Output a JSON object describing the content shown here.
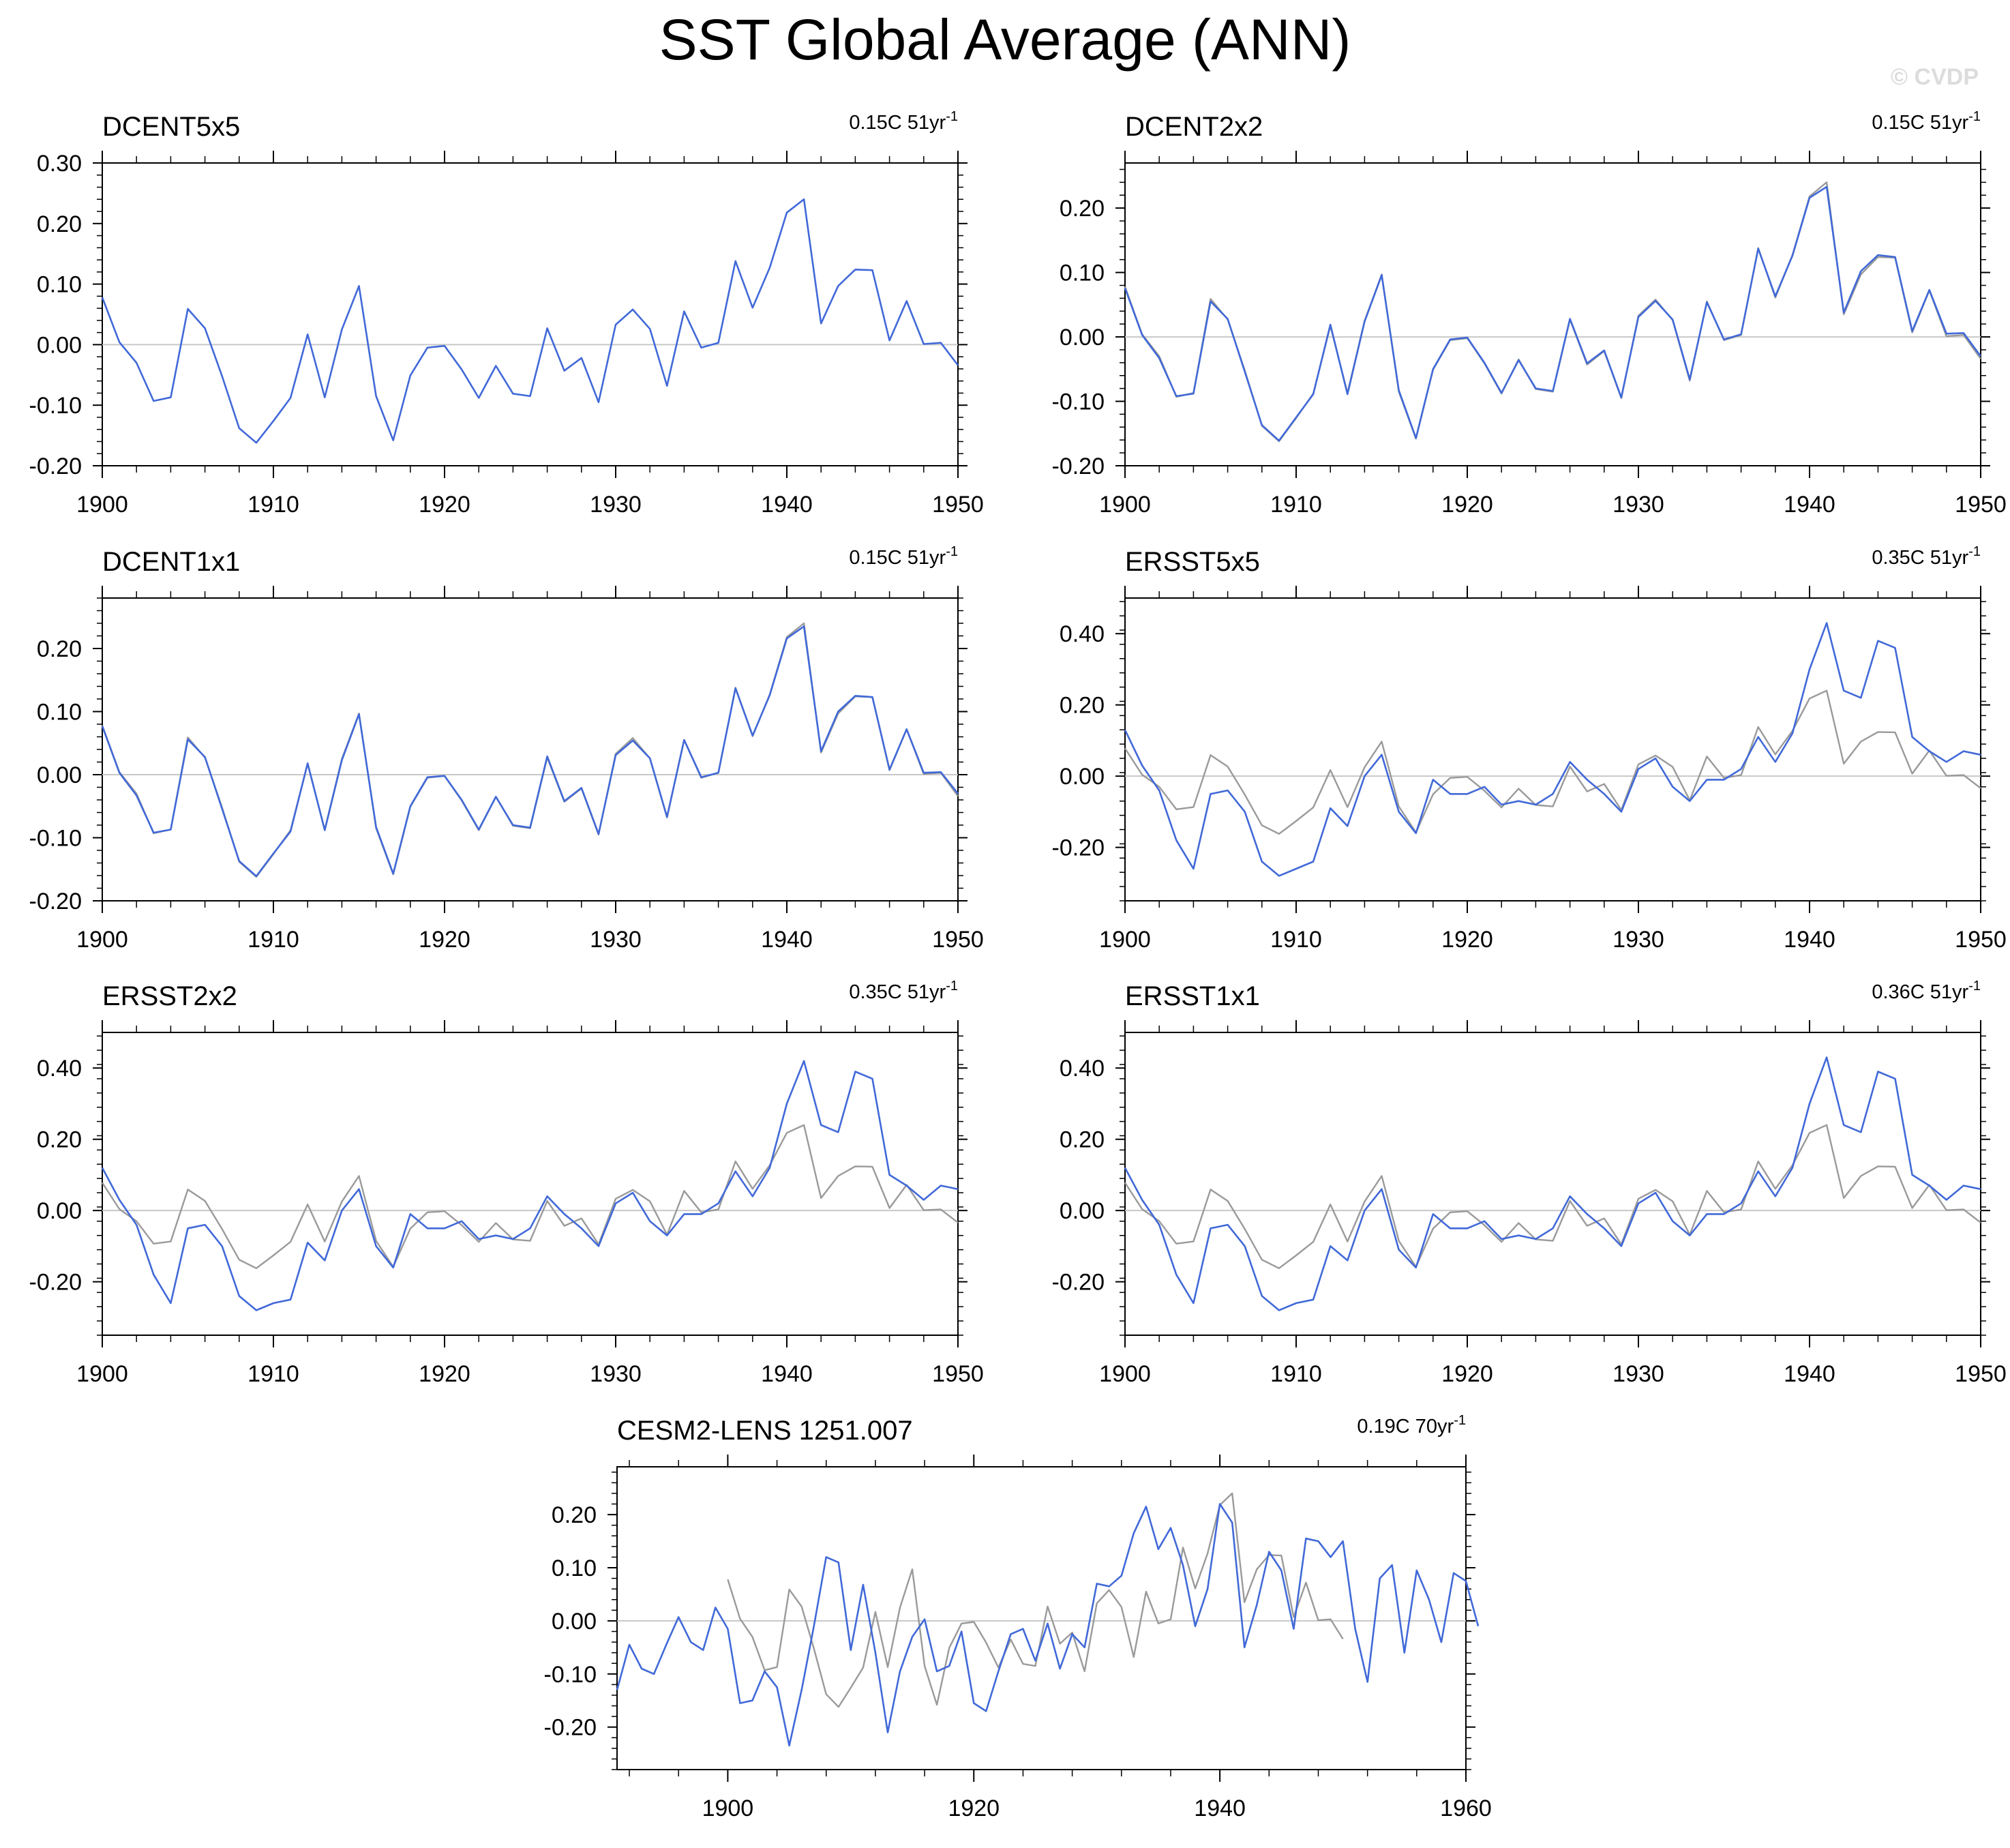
{
  "title": "SST Global Average (ANN)",
  "watermark": "© CVDP",
  "colors": {
    "series": "#4169d8",
    "reference": "#9a9a9a",
    "zero_line": "#c8c8c8",
    "axis": "#000000"
  },
  "chart_data": [
    {
      "type": "line",
      "title": "DCENT5x5",
      "trend": "0.15C 51yr",
      "trend_sup": "-1",
      "xlim": [
        1900,
        1950
      ],
      "ylim": [
        -0.2,
        0.3
      ],
      "xticks": [
        1900,
        1910,
        1920,
        1930,
        1940,
        1950
      ],
      "yticks": [
        "-0.20",
        "-0.10",
        "0.00",
        "0.10",
        "0.20",
        "0.30"
      ],
      "x_start": 1900,
      "series": [
        {
          "values": [
            0.078,
            0.004,
            -0.03,
            -0.093,
            -0.087,
            0.059,
            0.027,
            -0.052,
            -0.138,
            -0.162,
            -0.126,
            -0.088,
            0.017,
            -0.087,
            0.025,
            0.097,
            -0.085,
            -0.158,
            -0.051,
            -0.005,
            -0.002,
            -0.041,
            -0.088,
            -0.035,
            -0.081,
            -0.085,
            0.027,
            -0.043,
            -0.022,
            -0.095,
            0.033,
            0.058,
            0.026,
            -0.068,
            0.055,
            -0.005,
            0.003,
            0.138,
            0.061,
            0.127,
            0.218,
            0.24,
            0.035,
            0.097,
            0.124,
            0.123,
            0.007,
            0.072,
            0.001,
            0.003,
            -0.034
          ]
        }
      ]
    },
    {
      "type": "line",
      "title": "DCENT2x2",
      "trend": "0.15C 51yr",
      "trend_sup": "-1",
      "xlim": [
        1900,
        1950
      ],
      "ylim": [
        -0.2,
        0.27
      ],
      "xticks": [
        1900,
        1910,
        1920,
        1930,
        1940,
        1950
      ],
      "yticks": [
        "-0.20",
        "-0.10",
        "0.00",
        "0.10",
        "0.20"
      ],
      "x_start": 1900,
      "series": [
        {
          "name": "",
          "values": [
            0.078,
            0.004,
            -0.03,
            -0.093,
            -0.087,
            0.059,
            0.027,
            -0.052,
            -0.138,
            -0.162,
            -0.126,
            -0.088,
            0.017,
            -0.087,
            0.025,
            0.097,
            -0.085,
            -0.158,
            -0.051,
            -0.005,
            -0.002,
            -0.041,
            -0.088,
            -0.035,
            -0.081,
            -0.085,
            0.027,
            -0.043,
            -0.022,
            -0.095,
            0.033,
            0.058,
            0.026,
            -0.068,
            0.055,
            -0.005,
            0.003,
            0.138,
            0.061,
            0.127,
            0.218,
            0.24,
            0.035,
            0.097,
            0.124,
            0.123,
            0.007,
            0.072,
            0.001,
            0.003,
            -0.034
          ],
          "reference": true
        },
        {
          "values": [
            0.076,
            0.003,
            -0.033,
            -0.092,
            -0.088,
            0.055,
            0.028,
            -0.054,
            -0.137,
            -0.161,
            -0.125,
            -0.089,
            0.019,
            -0.089,
            0.024,
            0.096,
            -0.083,
            -0.157,
            -0.05,
            -0.004,
            -0.001,
            -0.04,
            -0.087,
            -0.036,
            -0.08,
            -0.084,
            0.028,
            -0.041,
            -0.021,
            -0.094,
            0.031,
            0.056,
            0.027,
            -0.066,
            0.054,
            -0.004,
            0.004,
            0.137,
            0.063,
            0.126,
            0.216,
            0.233,
            0.038,
            0.102,
            0.127,
            0.124,
            0.009,
            0.073,
            0.005,
            0.006,
            -0.03
          ]
        }
      ]
    },
    {
      "type": "line",
      "title": "DCENT1x1",
      "trend": "0.15C 51yr",
      "trend_sup": "-1",
      "xlim": [
        1900,
        1950
      ],
      "ylim": [
        -0.2,
        0.28
      ],
      "xticks": [
        1900,
        1910,
        1920,
        1930,
        1940,
        1950
      ],
      "yticks": [
        "-0.20",
        "-0.10",
        "0.00",
        "0.10",
        "0.20"
      ],
      "x_start": 1900,
      "series": [
        {
          "values": [
            0.078,
            0.004,
            -0.03,
            -0.093,
            -0.087,
            0.059,
            0.027,
            -0.052,
            -0.138,
            -0.162,
            -0.126,
            -0.088,
            0.017,
            -0.087,
            0.025,
            0.097,
            -0.085,
            -0.158,
            -0.051,
            -0.005,
            -0.002,
            -0.041,
            -0.088,
            -0.035,
            -0.081,
            -0.085,
            0.027,
            -0.043,
            -0.022,
            -0.095,
            0.033,
            0.058,
            0.026,
            -0.068,
            0.055,
            -0.005,
            0.003,
            0.138,
            0.061,
            0.127,
            0.218,
            0.24,
            0.035,
            0.097,
            0.124,
            0.123,
            0.007,
            0.072,
            0.001,
            0.003,
            -0.034
          ],
          "reference": true
        },
        {
          "values": [
            0.077,
            0.003,
            -0.033,
            -0.092,
            -0.087,
            0.056,
            0.028,
            -0.054,
            -0.137,
            -0.161,
            -0.125,
            -0.09,
            0.018,
            -0.088,
            0.023,
            0.096,
            -0.083,
            -0.157,
            -0.05,
            -0.004,
            -0.002,
            -0.04,
            -0.087,
            -0.035,
            -0.08,
            -0.084,
            0.029,
            -0.042,
            -0.021,
            -0.094,
            0.031,
            0.054,
            0.026,
            -0.067,
            0.055,
            -0.004,
            0.003,
            0.137,
            0.062,
            0.126,
            0.216,
            0.235,
            0.037,
            0.1,
            0.125,
            0.123,
            0.008,
            0.072,
            0.003,
            0.004,
            -0.03
          ]
        }
      ]
    },
    {
      "type": "line",
      "title": "ERSST5x5",
      "trend": "0.35C 51yr",
      "trend_sup": "-1",
      "xlim": [
        1900,
        1950
      ],
      "ylim": [
        -0.35,
        0.5
      ],
      "xticks": [
        1900,
        1910,
        1920,
        1930,
        1940,
        1950
      ],
      "yticks": [
        "-0.20",
        "0.00",
        "0.20",
        "0.40"
      ],
      "x_start": 1900,
      "series": [
        {
          "values": [
            0.078,
            0.004,
            -0.03,
            -0.093,
            -0.087,
            0.059,
            0.027,
            -0.052,
            -0.138,
            -0.162,
            -0.126,
            -0.088,
            0.017,
            -0.087,
            0.025,
            0.097,
            -0.085,
            -0.158,
            -0.051,
            -0.005,
            -0.002,
            -0.041,
            -0.088,
            -0.035,
            -0.081,
            -0.085,
            0.027,
            -0.043,
            -0.022,
            -0.095,
            0.033,
            0.058,
            0.026,
            -0.068,
            0.055,
            -0.005,
            0.003,
            0.138,
            0.061,
            0.127,
            0.218,
            0.24,
            0.035,
            0.097,
            0.124,
            0.123,
            0.007,
            0.072,
            0.001,
            0.003,
            -0.034
          ],
          "reference": true
        },
        {
          "values": [
            0.13,
            0.03,
            -0.04,
            -0.18,
            -0.26,
            -0.05,
            -0.04,
            -0.1,
            -0.24,
            -0.28,
            -0.26,
            -0.24,
            -0.09,
            -0.14,
            0.0,
            0.06,
            -0.1,
            -0.16,
            -0.01,
            -0.05,
            -0.05,
            -0.03,
            -0.08,
            -0.07,
            -0.08,
            -0.05,
            0.04,
            -0.01,
            -0.05,
            -0.1,
            0.02,
            0.05,
            -0.03,
            -0.07,
            -0.01,
            -0.01,
            0.02,
            0.11,
            0.04,
            0.12,
            0.3,
            0.43,
            0.24,
            0.22,
            0.38,
            0.36,
            0.11,
            0.07,
            0.04,
            0.07,
            0.06
          ]
        }
      ]
    },
    {
      "type": "line",
      "title": "ERSST2x2",
      "trend": "0.35C 51yr",
      "trend_sup": "-1",
      "xlim": [
        1900,
        1950
      ],
      "ylim": [
        -0.35,
        0.5
      ],
      "xticks": [
        1900,
        1910,
        1920,
        1930,
        1940,
        1950
      ],
      "yticks": [
        "-0.20",
        "0.00",
        "0.20",
        "0.40"
      ],
      "x_start": 1900,
      "series": [
        {
          "values": [
            0.078,
            0.004,
            -0.03,
            -0.093,
            -0.087,
            0.059,
            0.027,
            -0.052,
            -0.138,
            -0.162,
            -0.126,
            -0.088,
            0.017,
            -0.087,
            0.025,
            0.097,
            -0.085,
            -0.158,
            -0.051,
            -0.005,
            -0.002,
            -0.041,
            -0.088,
            -0.035,
            -0.081,
            -0.085,
            0.027,
            -0.043,
            -0.022,
            -0.095,
            0.033,
            0.058,
            0.026,
            -0.068,
            0.055,
            -0.005,
            0.003,
            0.138,
            0.061,
            0.127,
            0.218,
            0.24,
            0.035,
            0.097,
            0.124,
            0.123,
            0.007,
            0.072,
            0.001,
            0.003,
            -0.034
          ],
          "reference": true
        },
        {
          "values": [
            0.12,
            0.03,
            -0.04,
            -0.18,
            -0.26,
            -0.05,
            -0.04,
            -0.1,
            -0.24,
            -0.28,
            -0.26,
            -0.25,
            -0.09,
            -0.14,
            0.0,
            0.06,
            -0.1,
            -0.16,
            -0.01,
            -0.05,
            -0.05,
            -0.03,
            -0.08,
            -0.07,
            -0.08,
            -0.05,
            0.04,
            -0.01,
            -0.05,
            -0.1,
            0.02,
            0.05,
            -0.03,
            -0.07,
            -0.01,
            -0.01,
            0.02,
            0.11,
            0.04,
            0.12,
            0.3,
            0.42,
            0.24,
            0.22,
            0.39,
            0.37,
            0.1,
            0.07,
            0.03,
            0.07,
            0.06
          ]
        }
      ]
    },
    {
      "type": "line",
      "title": "ERSST1x1",
      "trend": "0.36C 51yr",
      "trend_sup": "-1",
      "xlim": [
        1900,
        1950
      ],
      "ylim": [
        -0.35,
        0.5
      ],
      "xticks": [
        1900,
        1910,
        1920,
        1930,
        1940,
        1950
      ],
      "yticks": [
        "-0.20",
        "0.00",
        "0.20",
        "0.40"
      ],
      "x_start": 1900,
      "series": [
        {
          "values": [
            0.078,
            0.004,
            -0.03,
            -0.093,
            -0.087,
            0.059,
            0.027,
            -0.052,
            -0.138,
            -0.162,
            -0.126,
            -0.088,
            0.017,
            -0.087,
            0.025,
            0.097,
            -0.085,
            -0.158,
            -0.051,
            -0.005,
            -0.002,
            -0.041,
            -0.088,
            -0.035,
            -0.081,
            -0.085,
            0.027,
            -0.043,
            -0.022,
            -0.095,
            0.033,
            0.058,
            0.026,
            -0.068,
            0.055,
            -0.005,
            0.003,
            0.138,
            0.061,
            0.127,
            0.218,
            0.24,
            0.035,
            0.097,
            0.124,
            0.123,
            0.007,
            0.072,
            0.001,
            0.003,
            -0.034
          ],
          "reference": true
        },
        {
          "values": [
            0.12,
            0.03,
            -0.04,
            -0.18,
            -0.26,
            -0.05,
            -0.04,
            -0.1,
            -0.24,
            -0.28,
            -0.26,
            -0.25,
            -0.1,
            -0.14,
            0.0,
            0.06,
            -0.11,
            -0.16,
            -0.01,
            -0.05,
            -0.05,
            -0.03,
            -0.08,
            -0.07,
            -0.08,
            -0.05,
            0.04,
            -0.01,
            -0.05,
            -0.1,
            0.02,
            0.05,
            -0.03,
            -0.07,
            -0.01,
            -0.01,
            0.02,
            0.11,
            0.04,
            0.12,
            0.3,
            0.43,
            0.24,
            0.22,
            0.39,
            0.37,
            0.1,
            0.07,
            0.03,
            0.07,
            0.06
          ]
        }
      ]
    },
    {
      "type": "line",
      "title": "CESM2-LENS 1251.007",
      "trend": "0.19C 70yr",
      "trend_sup": "-1",
      "xlim": [
        1891,
        1960
      ],
      "ylim": [
        -0.28,
        0.29
      ],
      "xticks": [
        1900,
        1920,
        1940,
        1960
      ],
      "yticks": [
        "-0.20",
        "-0.10",
        "0.00",
        "0.10",
        "0.20"
      ],
      "series": [
        {
          "x_start": 1900,
          "values": [
            0.078,
            0.004,
            -0.03,
            -0.093,
            -0.087,
            0.059,
            0.027,
            -0.052,
            -0.138,
            -0.162,
            -0.126,
            -0.088,
            0.017,
            -0.087,
            0.025,
            0.097,
            -0.085,
            -0.158,
            -0.051,
            -0.005,
            -0.002,
            -0.041,
            -0.088,
            -0.035,
            -0.081,
            -0.085,
            0.027,
            -0.043,
            -0.022,
            -0.095,
            0.033,
            0.058,
            0.026,
            -0.068,
            0.055,
            -0.005,
            0.003,
            0.138,
            0.061,
            0.127,
            0.218,
            0.24,
            0.035,
            0.097,
            0.124,
            0.123,
            0.007,
            0.072,
            0.001,
            0.003,
            -0.034
          ],
          "reference": true
        },
        {
          "x_start": 1891,
          "values": [
            -0.13,
            -0.045,
            -0.09,
            -0.1,
            -0.045,
            0.007,
            -0.04,
            -0.055,
            0.025,
            -0.015,
            -0.155,
            -0.15,
            -0.095,
            -0.125,
            -0.235,
            -0.13,
            -0.01,
            0.12,
            0.11,
            -0.055,
            0.068,
            -0.06,
            -0.21,
            -0.095,
            -0.03,
            0.003,
            -0.095,
            -0.085,
            -0.02,
            -0.155,
            -0.17,
            -0.095,
            -0.025,
            -0.015,
            -0.075,
            -0.005,
            -0.09,
            -0.025,
            -0.05,
            0.07,
            0.065,
            0.085,
            0.165,
            0.215,
            0.135,
            0.175,
            0.105,
            -0.01,
            0.06,
            0.22,
            0.185,
            -0.05,
            0.03,
            0.13,
            0.095,
            -0.015,
            0.155,
            0.15,
            0.12,
            0.15,
            -0.015,
            -0.115,
            0.08,
            0.105,
            -0.06,
            0.095,
            0.04,
            -0.04,
            0.09,
            0.075,
            -0.01
          ]
        }
      ]
    }
  ]
}
